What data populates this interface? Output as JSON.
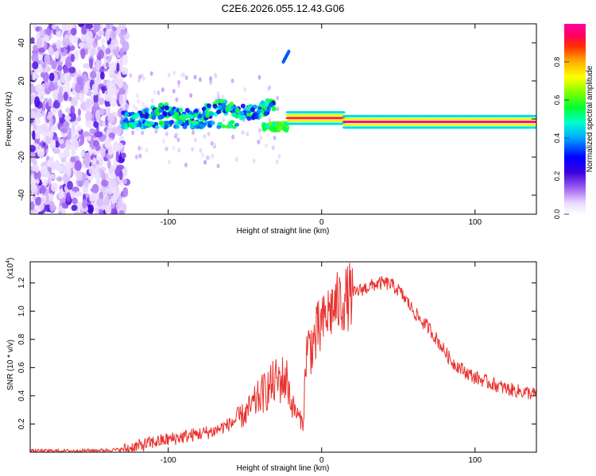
{
  "title": "C2E6.2026.055.12.43.G06",
  "colors": {
    "line": "#e8312e",
    "axis": "#000000"
  },
  "colorbar": {
    "label": "Normalized spectral amplitude",
    "ticks": [
      "0.0",
      "0.2",
      "0.4",
      "0.6",
      "0.8"
    ],
    "tick_values": [
      0.0,
      0.2,
      0.4,
      0.6,
      0.8
    ],
    "range": [
      0,
      1
    ]
  },
  "chart_data": [
    {
      "type": "heatmap",
      "title": "C2E6.2026.055.12.43.G06",
      "xlabel": "Height of straight line (km)",
      "ylabel": "Frequency (Hz)",
      "xlim": [
        -190,
        140
      ],
      "ylim": [
        -50,
        50
      ],
      "xticks": [
        -100,
        0,
        100
      ],
      "xtick_labels": [
        "-100",
        "0",
        "100"
      ],
      "yticks": [
        -40,
        -20,
        0,
        20,
        40
      ],
      "ytick_labels": [
        "-40",
        "-20",
        "0",
        "20",
        "40"
      ],
      "zlabel": "Normalized spectral amplitude",
      "zlim": [
        0,
        1
      ],
      "description_features": [
        {
          "x_range": [
            -190,
            -127
          ],
          "y_range": [
            -50,
            50
          ],
          "amplitude": 0.1,
          "kind": "noise"
        },
        {
          "x_range": [
            -130,
            -30
          ],
          "y_center": 2,
          "amplitude": 0.45,
          "kind": "ridge"
        },
        {
          "x_range": [
            -30,
            140
          ],
          "y_center": -1,
          "amplitude": 0.95,
          "kind": "ridge"
        }
      ]
    },
    {
      "type": "line",
      "xlabel": "Height of straight line (km)",
      "ylabel": "SNR (10 * v/v)",
      "ylabel_multiplier": "(x10",
      "ylabel_exponent": "4",
      "ylabel_close": ")",
      "xlim": [
        -190,
        140
      ],
      "ylim": [
        0,
        1.35
      ],
      "xticks": [
        -100,
        0,
        100
      ],
      "xtick_labels": [
        "-100",
        "0",
        "100"
      ],
      "yticks": [
        0.2,
        0.4,
        0.6,
        0.8,
        1.0,
        1.2
      ],
      "ytick_labels": [
        "0.2",
        "0.4",
        "0.6",
        "0.8",
        "1.0",
        "1.2"
      ],
      "series": [
        {
          "name": "SNR",
          "x": [
            -190,
            -160,
            -140,
            -128,
            -120,
            -110,
            -100,
            -90,
            -80,
            -70,
            -60,
            -50,
            -45,
            -40,
            -35,
            -30,
            -25,
            -22,
            -20,
            -15,
            -12,
            -10,
            -5,
            0,
            5,
            10,
            15,
            20,
            25,
            30,
            35,
            40,
            45,
            50,
            55,
            60,
            65,
            70,
            75,
            80,
            85,
            90,
            95,
            100,
            110,
            120,
            130,
            140
          ],
          "values": [
            0.01,
            0.01,
            0.015,
            0.02,
            0.04,
            0.07,
            0.09,
            0.11,
            0.13,
            0.15,
            0.2,
            0.27,
            0.33,
            0.4,
            0.45,
            0.5,
            0.52,
            0.5,
            0.35,
            0.25,
            0.2,
            0.72,
            0.78,
            0.9,
            1.0,
            1.05,
            1.08,
            1.12,
            1.15,
            1.17,
            1.19,
            1.2,
            1.19,
            1.15,
            1.08,
            1.0,
            0.93,
            0.88,
            0.8,
            0.72,
            0.64,
            0.6,
            0.56,
            0.53,
            0.49,
            0.45,
            0.43,
            0.41
          ]
        }
      ]
    }
  ]
}
